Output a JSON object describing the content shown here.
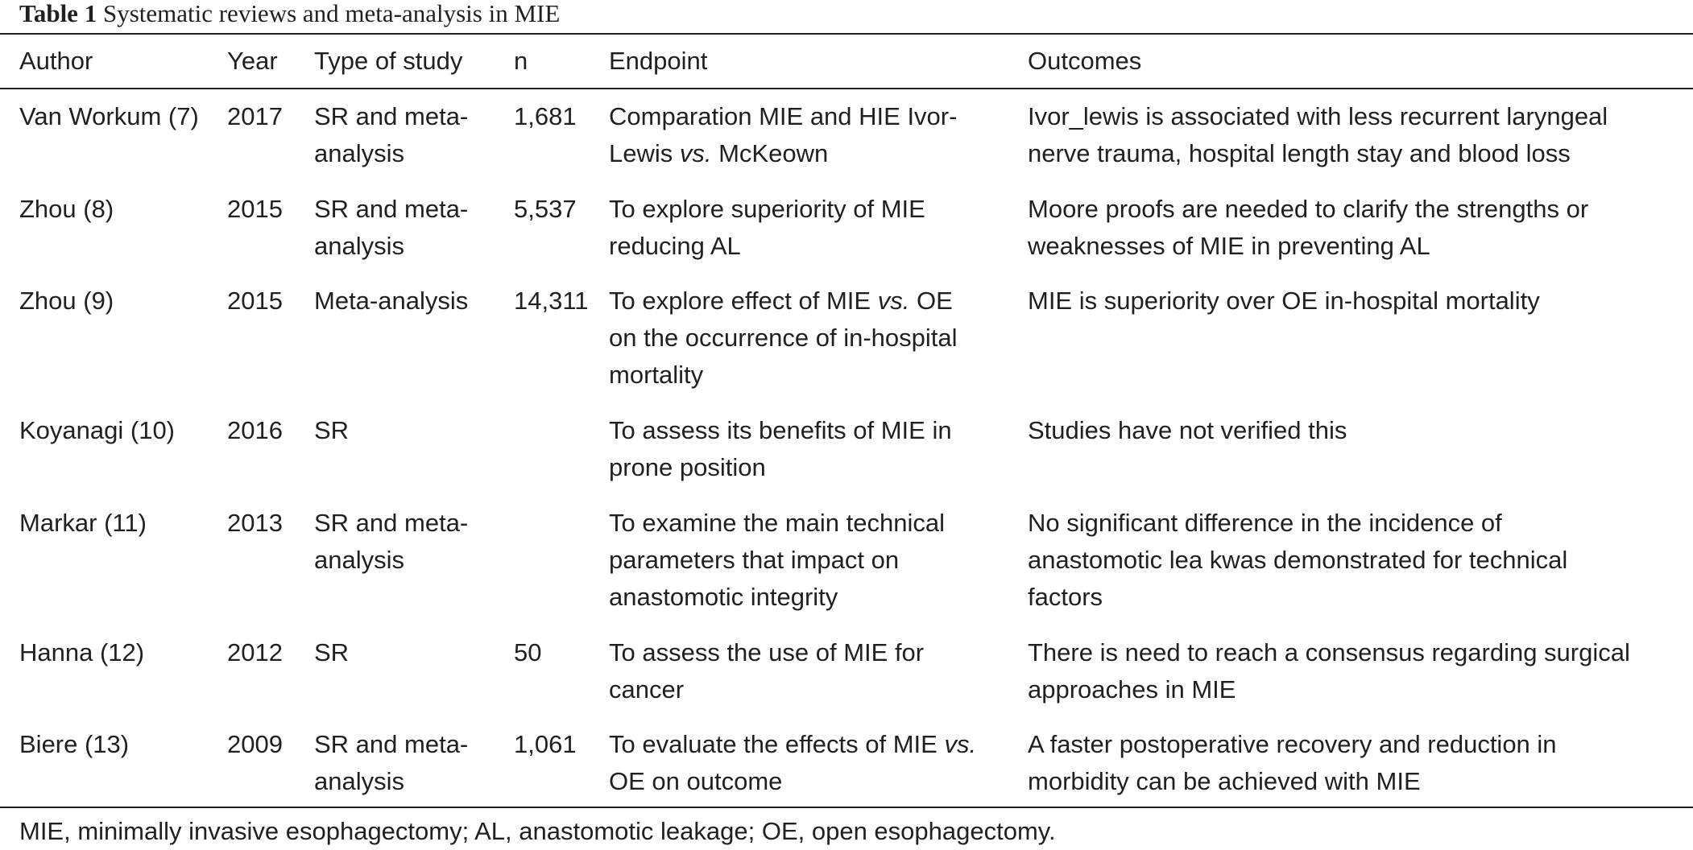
{
  "caption": {
    "label": "Table 1",
    "title": "Systematic reviews and meta-analysis in MIE"
  },
  "headers": {
    "author": "Author",
    "year": "Year",
    "type": "Type of study",
    "n": "n",
    "endpoint": "Endpoint",
    "outcomes": "Outcomes"
  },
  "rows": [
    {
      "author": "Van Workum (7)",
      "year": "2017",
      "type": [
        "SR and meta-",
        "analysis"
      ],
      "n": "1,681",
      "endpoint": [
        "Comparation MIE and HIE Ivor-",
        "Lewis ",
        "vs.",
        " McKeown"
      ],
      "outcomes": [
        "Ivor_lewis is associated with less recurrent laryngeal",
        "nerve trauma, hospital length stay and blood loss"
      ]
    },
    {
      "author": "Zhou (8)",
      "year": "2015",
      "type": [
        "SR and meta-",
        "analysis"
      ],
      "n": "5,537",
      "endpoint": [
        "To explore superiority of MIE",
        "reducing AL"
      ],
      "outcomes": [
        "Moore proofs are needed to clarify the strengths or",
        "weaknesses of MIE in preventing AL"
      ]
    },
    {
      "author": "Zhou (9)",
      "year": "2015",
      "type": [
        "Meta-analysis"
      ],
      "n": "14,311",
      "endpoint": [
        "To explore effect of MIE ",
        "vs.",
        " OE",
        "on the occurrence of in-hospital",
        "mortality"
      ],
      "outcomes": [
        "MIE is superiority over OE in-hospital mortality"
      ]
    },
    {
      "author": "Koyanagi (10)",
      "year": "2016",
      "type": [
        "SR"
      ],
      "n": "",
      "endpoint": [
        "To assess its benefits of MIE in",
        "prone position"
      ],
      "outcomes": [
        "Studies have not verified this"
      ]
    },
    {
      "author": "Markar (11)",
      "year": "2013",
      "type": [
        "SR and meta-",
        "analysis"
      ],
      "n": "",
      "endpoint": [
        "To examine the main technical",
        "parameters that impact on",
        "anastomotic integrity"
      ],
      "outcomes": [
        "No significant difference in the incidence of",
        "anastomotic lea kwas demonstrated for technical",
        "factors"
      ]
    },
    {
      "author": "Hanna (12)",
      "year": "2012",
      "type": [
        "SR"
      ],
      "n": "50",
      "endpoint": [
        "To assess the use of MIE for",
        "cancer"
      ],
      "outcomes": [
        "There is need to reach a consensus regarding surgical",
        "approaches in MIE"
      ]
    },
    {
      "author": "Biere (13)",
      "year": "2009",
      "type": [
        "SR and meta-",
        "analysis"
      ],
      "n": "1,061",
      "endpoint": [
        "To evaluate the effects of MIE ",
        "vs.",
        "OE on outcome"
      ],
      "outcomes": [
        "A faster postoperative recovery and reduction in",
        "morbidity can be achieved with MIE"
      ]
    }
  ],
  "footnote": "MIE, minimally invasive esophagectomy; AL, anastomotic leakage; OE, open esophagectomy."
}
